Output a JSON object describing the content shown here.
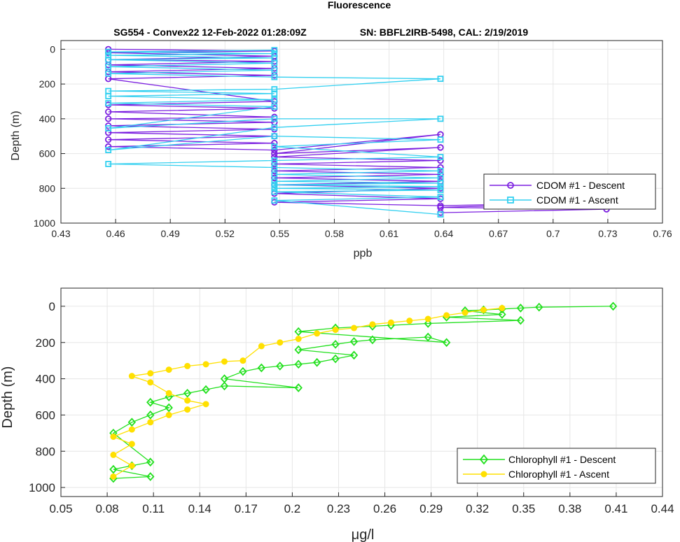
{
  "figure_title": "Fluorescence",
  "chart_data": [
    {
      "type": "line",
      "title": "SG554 - Convex22 12-Feb-2022 01:28:09Z",
      "subtitle": "SN: BBFL2IRB-5498, CAL: 2/19/2019",
      "xlabel": "ppb",
      "ylabel": "Depth (m)",
      "xlim": [
        0.43,
        0.76
      ],
      "ylim": [
        1000,
        -50
      ],
      "y_reversed": true,
      "grid": true,
      "xticks": [
        "0.43",
        "0.46",
        "0.49",
        "0.52",
        "0.55",
        "0.58",
        "0.61",
        "0.64",
        "0.67",
        "0.7",
        "0.73",
        "0.76"
      ],
      "yticks": [
        "0",
        "200",
        "400",
        "600",
        "800",
        "1000"
      ],
      "legend_position": "bottom-right",
      "series": [
        {
          "name": "CDOM #1 - Descent",
          "color": "#7b1fe0",
          "marker": "circle",
          "x": [
            0.456,
            0.5471,
            0.456,
            0.5471,
            0.456,
            0.5471,
            0.456,
            0.5471,
            0.456,
            0.5471,
            0.456,
            0.5471,
            0.456,
            0.5471,
            0.456,
            0.5471,
            0.456,
            0.5471,
            0.456,
            0.5471,
            0.456,
            0.5471,
            0.456,
            0.5471,
            0.456,
            0.5471,
            0.6382,
            0.5471,
            0.6382,
            0.5471,
            0.6382,
            0.5471,
            0.6382,
            0.5471,
            0.6382,
            0.5471,
            0.6382,
            0.5471,
            0.6382,
            0.5471,
            0.6382,
            0.5471,
            0.6382,
            0.7293,
            0.6382,
            0.7293,
            0.6382
          ],
          "y": [
            0,
            10,
            20,
            40,
            60,
            70,
            90,
            110,
            130,
            150,
            170,
            300,
            320,
            340,
            360,
            390,
            400,
            420,
            440,
            460,
            480,
            500,
            520,
            540,
            560,
            580,
            490,
            600,
            565,
            620,
            640,
            660,
            680,
            700,
            720,
            740,
            760,
            780,
            800,
            830,
            860,
            880,
            900,
            880,
            910,
            920,
            940
          ]
        },
        {
          "name": "CDOM #1 - Ascent",
          "color": "#33d0f0",
          "marker": "square",
          "x": [
            0.5471,
            0.456,
            0.5471,
            0.456,
            0.5471,
            0.456,
            0.5471,
            0.456,
            0.5471,
            0.456,
            0.5471,
            0.6382,
            0.5471,
            0.456,
            0.5471,
            0.456,
            0.5471,
            0.456,
            0.5471,
            0.456,
            0.5471,
            0.6382,
            0.5471,
            0.456,
            0.5471,
            0.6382,
            0.5471,
            0.6382,
            0.5471,
            0.456,
            0.5471,
            0.6382,
            0.5471,
            0.6382,
            0.5471,
            0.6382,
            0.5471,
            0.6382,
            0.5471,
            0.6382,
            0.5471,
            0.6382,
            0.5471,
            0.6382
          ],
          "y": [
            5,
            15,
            25,
            35,
            50,
            60,
            80,
            100,
            120,
            140,
            160,
            170,
            230,
            240,
            255,
            270,
            290,
            310,
            330,
            455,
            400,
            400,
            450,
            580,
            500,
            520,
            560,
            620,
            640,
            660,
            680,
            700,
            720,
            740,
            760,
            770,
            780,
            790,
            800,
            810,
            820,
            850,
            870,
            950
          ]
        }
      ]
    },
    {
      "type": "line",
      "xlabel": "μg/l",
      "ylabel": "Depth (m)",
      "xlim": [
        0.05,
        0.44
      ],
      "ylim": [
        1050,
        -100
      ],
      "y_reversed": true,
      "grid": true,
      "xticks": [
        "0.05",
        "0.08",
        "0.11",
        "0.14",
        "0.17",
        "0.2",
        "0.23",
        "0.26",
        "0.29",
        "0.32",
        "0.35",
        "0.38",
        "0.41",
        "0.44"
      ],
      "yticks": [
        "0",
        "200",
        "400",
        "600",
        "800",
        "1000"
      ],
      "legend_position": "bottom-right",
      "series": [
        {
          "name": "Chlorophyll #1 - Descent",
          "color": "#22e01e",
          "marker": "diamond",
          "x": [
            0.408,
            0.36,
            0.348,
            0.336,
            0.324,
            0.312,
            0.336,
            0.3,
            0.348,
            0.288,
            0.264,
            0.252,
            0.228,
            0.204,
            0.3,
            0.288,
            0.252,
            0.24,
            0.228,
            0.204,
            0.24,
            0.228,
            0.216,
            0.204,
            0.192,
            0.18,
            0.168,
            0.156,
            0.204,
            0.156,
            0.144,
            0.132,
            0.12,
            0.108,
            0.12,
            0.108,
            0.096,
            0.084,
            0.108,
            0.096,
            0.084,
            0.108,
            0.084
          ],
          "y": [
            0,
            5,
            10,
            15,
            20,
            25,
            45,
            60,
            78,
            95,
            105,
            110,
            120,
            140,
            200,
            170,
            185,
            195,
            210,
            240,
            270,
            290,
            310,
            320,
            330,
            340,
            360,
            400,
            450,
            440,
            460,
            480,
            500,
            530,
            560,
            600,
            640,
            700,
            860,
            880,
            900,
            940,
            950
          ]
        },
        {
          "name": "Chlorophyll #1 - Ascent",
          "color": "#ffe000",
          "marker": "circle",
          "x": [
            0.336,
            0.324,
            0.312,
            0.3,
            0.288,
            0.276,
            0.264,
            0.252,
            0.24,
            0.228,
            0.216,
            0.204,
            0.192,
            0.18,
            0.168,
            0.156,
            0.144,
            0.132,
            0.12,
            0.108,
            0.096,
            0.108,
            0.12,
            0.132,
            0.144,
            0.132,
            0.12,
            0.108,
            0.096,
            0.084,
            0.096,
            0.084,
            0.096,
            0.084
          ],
          "y": [
            10,
            20,
            35,
            50,
            70,
            80,
            90,
            100,
            120,
            130,
            150,
            180,
            200,
            220,
            300,
            305,
            320,
            330,
            350,
            370,
            385,
            420,
            480,
            520,
            540,
            570,
            600,
            640,
            680,
            720,
            760,
            820,
            880,
            940
          ]
        }
      ]
    }
  ]
}
